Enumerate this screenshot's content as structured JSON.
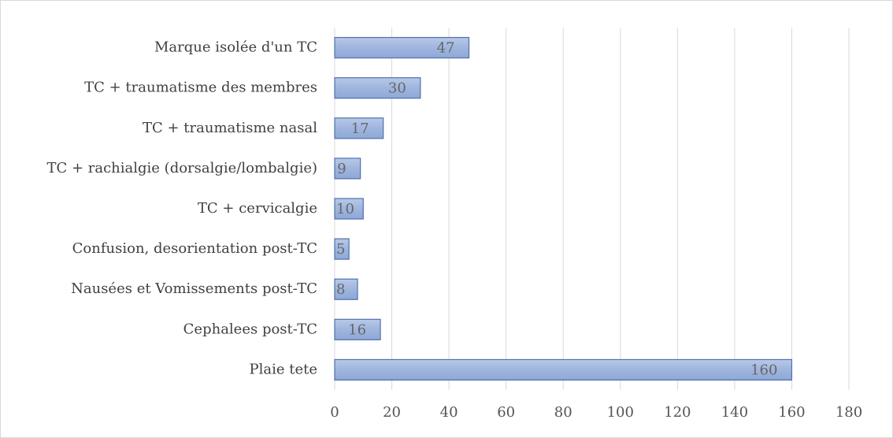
{
  "chart_data": {
    "type": "hbar",
    "categories": [
      "Marque isolée d'un TC",
      "TC + traumatisme des membres",
      "TC + traumatisme nasal",
      "TC + rachialgie (dorsalgie/lombalgie)",
      "TC + cervicalgie",
      "Confusion, desorientation post-TC",
      "Nausées et Vomissements post-TC",
      "Cephalees post-TC",
      "Plaie tete"
    ],
    "values": [
      47,
      30,
      17,
      9,
      10,
      5,
      8,
      16,
      160
    ],
    "color": "#9fb5de",
    "xlim": [
      0,
      180
    ],
    "xticks": [
      0,
      20,
      40,
      60,
      80,
      100,
      120,
      140,
      160,
      180
    ],
    "grid": true
  }
}
